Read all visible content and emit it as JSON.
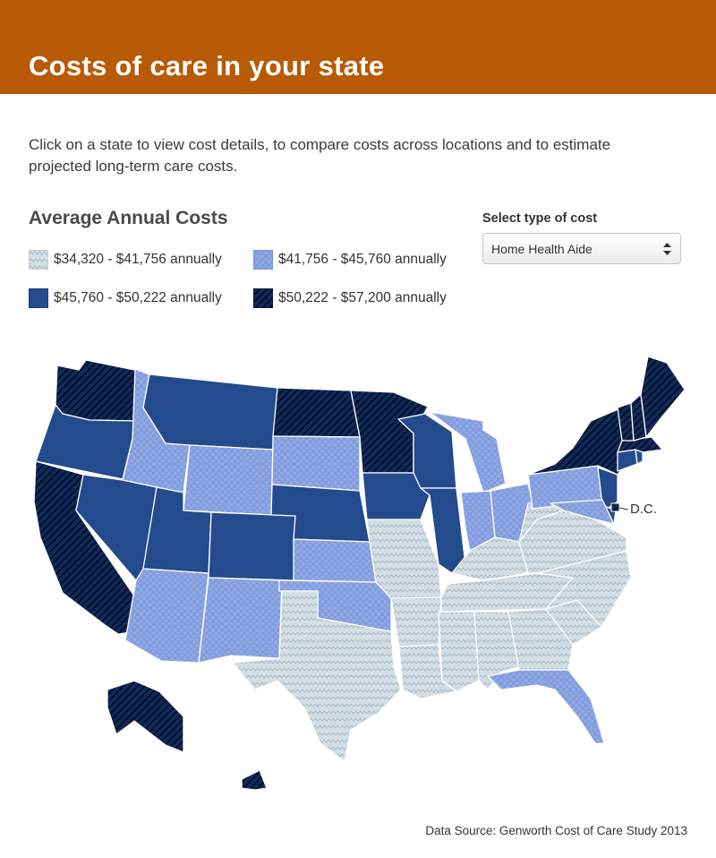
{
  "header": {
    "title": "Costs of care in your state"
  },
  "intro": "Click on a state to view cost details, to compare costs across locations and to estimate projected long-term care costs.",
  "legend": {
    "title": "Average Annual Costs",
    "items": [
      {
        "label": "$34,320 - $41,756 annually",
        "color": "#cdd9e1",
        "pattern": "zigzag"
      },
      {
        "label": "$41,756 - $45,760 annually",
        "color": "#8fa7e4",
        "pattern": "crosshatch"
      },
      {
        "label": "$45,760 - $50,222 annually",
        "color": "#244b8e",
        "pattern": "solid"
      },
      {
        "label": "$50,222 - $57,200 annually",
        "color": "#0d2450",
        "pattern": "diagonal"
      }
    ]
  },
  "cost_type": {
    "label": "Select type of cost",
    "selected": "Home Health Aide"
  },
  "map": {
    "dc_label": "D.C.",
    "states": {
      "WA": 3,
      "OR": 2,
      "CA": 3,
      "NV": 2,
      "ID": 1,
      "MT": 2,
      "WY": 1,
      "UT": 2,
      "AZ": 1,
      "CO": 2,
      "NM": 1,
      "ND": 3,
      "SD": 1,
      "NE": 2,
      "KS": 1,
      "OK": 1,
      "TX": 0,
      "MN": 3,
      "IA": 2,
      "MO": 0,
      "AR": 0,
      "LA": 0,
      "WI": 2,
      "IL": 2,
      "MI": 1,
      "IN": 1,
      "OH": 1,
      "KY": 0,
      "TN": 0,
      "MS": 0,
      "AL": 0,
      "GA": 0,
      "FL": 1,
      "SC": 0,
      "NC": 0,
      "VA": 0,
      "WV": 0,
      "PA": 1,
      "NY": 3,
      "NJ": 2,
      "DE": 2,
      "MD": 1,
      "DC": 3,
      "CT": 2,
      "RI": 2,
      "MA": 3,
      "VT": 3,
      "NH": 3,
      "ME": 3,
      "AK": 3,
      "HI": 3
    }
  },
  "source": "Data Source: Genworth Cost of Care Study 2013"
}
